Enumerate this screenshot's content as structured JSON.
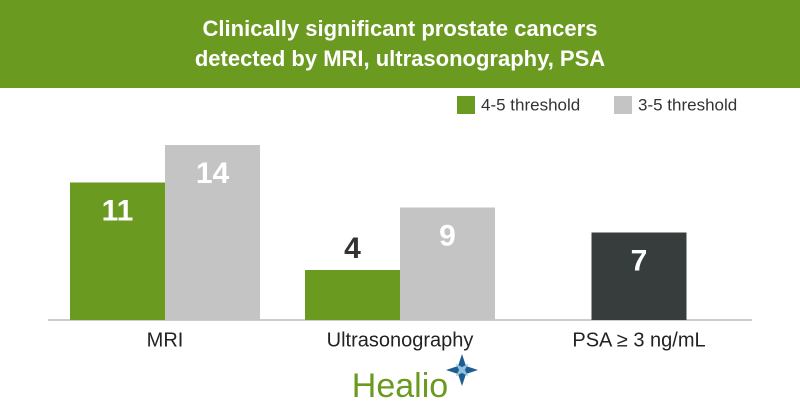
{
  "chart_data": {
    "type": "bar",
    "title": "Clinically significant prostate cancers detected by MRI, ultrasonography, PSA",
    "categories": [
      "MRI",
      "Ultrasonography",
      "PSA ≥ 3 ng/mL"
    ],
    "series": [
      {
        "name": "4-5 threshold",
        "color": "#6a9a1f",
        "values": [
          11,
          4,
          null
        ]
      },
      {
        "name": "3-5 threshold",
        "color": "#c4c4c4",
        "values": [
          14,
          9,
          null
        ]
      },
      {
        "color": "#373d3d",
        "values": [
          null,
          null,
          7
        ]
      }
    ],
    "legend": "top-right"
  },
  "logo": "Healio"
}
